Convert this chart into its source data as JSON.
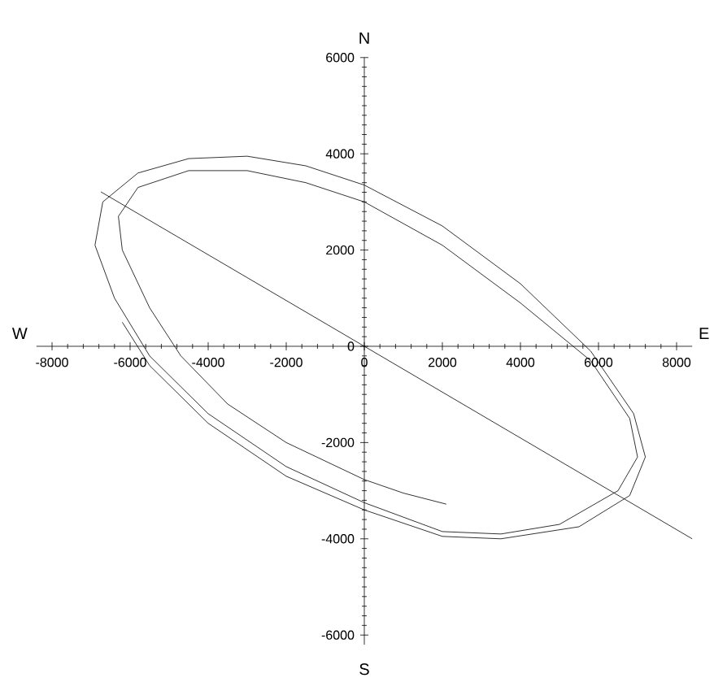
{
  "chart_data": {
    "type": "line",
    "annotations": [
      "N",
      "E",
      "S",
      "W"
    ],
    "xlim": [
      -8400,
      8400
    ],
    "ylim": [
      -6200,
      6000
    ],
    "xticks": [
      -8000,
      -6000,
      -4000,
      -2000,
      0,
      2000,
      4000,
      6000,
      8000
    ],
    "yticks": [
      -6000,
      -4000,
      -2000,
      0,
      2000,
      4000,
      6000
    ],
    "grid": false,
    "marker": "none",
    "line_style": "solid",
    "series": [
      {
        "color": "#000000",
        "x": [
          2100,
          1000,
          0,
          -2000,
          -3500,
          -4700,
          -5500,
          -6200,
          -6300,
          -5800,
          -4500,
          -3000,
          -1500,
          0,
          2000,
          4000,
          5800,
          6800,
          7000,
          6500,
          5000,
          3500,
          2000,
          0,
          -2000,
          -4000,
          -5500,
          -6400,
          -6900,
          -6700,
          -5800,
          -4500,
          -3000,
          -1500,
          0,
          2000,
          4000,
          5800,
          6900,
          7200,
          6800,
          5500,
          3500,
          2000,
          0,
          -2000,
          -4000,
          -5500,
          -6200
        ],
        "values": [
          -3280,
          -3050,
          -2770,
          -2000,
          -1200,
          -200,
          800,
          2000,
          2700,
          3300,
          3650,
          3650,
          3400,
          3000,
          2100,
          900,
          -300,
          -1500,
          -2300,
          -3000,
          -3700,
          -3900,
          -3850,
          -3250,
          -2500,
          -1400,
          -200,
          1000,
          2100,
          3000,
          3600,
          3900,
          3950,
          3750,
          3350,
          2500,
          1300,
          -100,
          -1400,
          -2300,
          -3100,
          -3750,
          -4000,
          -3950,
          -3400,
          -2700,
          -1600,
          -400,
          500
        ]
      },
      {
        "color": "#000000",
        "x": [
          -6750,
          0,
          8400
        ],
        "values": [
          3210,
          0,
          -4000
        ]
      }
    ]
  }
}
